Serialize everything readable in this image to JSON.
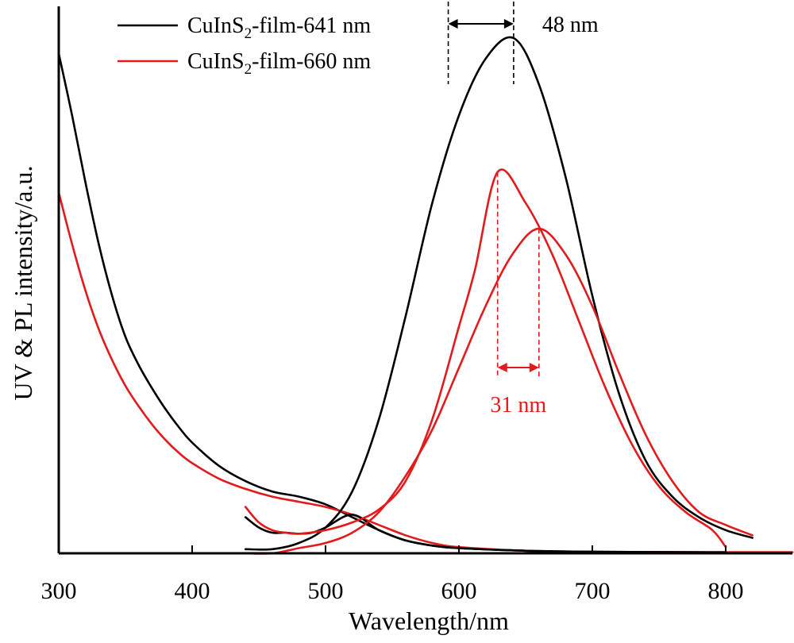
{
  "chart_data": {
    "type": "line",
    "xlabel": "Wavelength/nm",
    "ylabel": "UV & PL intensity/a.u.",
    "xlim": [
      300,
      850
    ],
    "ylim": [
      0,
      100
    ],
    "xticks": [
      300,
      400,
      500,
      600,
      700,
      800
    ],
    "yticks_shown": false,
    "grid": false,
    "legend_position": "top-center",
    "colors": {
      "film641": "#000000",
      "film660": "#e31a1c"
    },
    "legend": [
      {
        "name_prefix": "CuInS",
        "name_sub": "2",
        "name_suffix": "-film-641 nm",
        "color": "#000000"
      },
      {
        "name_prefix": "CuInS",
        "name_sub": "2",
        "name_suffix": "-film-660 nm",
        "color": "#e31a1c"
      }
    ],
    "series": [
      {
        "name": "CuInS2-film-641 nm",
        "role": "UV absorption",
        "color": "#000000",
        "points": [
          [
            300,
            97
          ],
          [
            310,
            85
          ],
          [
            320,
            72
          ],
          [
            330,
            60
          ],
          [
            340,
            50
          ],
          [
            350,
            42
          ],
          [
            360,
            36.5
          ],
          [
            370,
            32
          ],
          [
            380,
            28
          ],
          [
            390,
            24.5
          ],
          [
            400,
            21.5
          ],
          [
            420,
            17
          ],
          [
            440,
            14
          ],
          [
            460,
            12
          ],
          [
            480,
            11
          ],
          [
            500,
            9.5
          ],
          [
            520,
            7
          ],
          [
            540,
            4.5
          ],
          [
            560,
            2.5
          ],
          [
            580,
            1.5
          ],
          [
            600,
            1
          ],
          [
            650,
            0.5
          ],
          [
            700,
            0.3
          ],
          [
            800,
            0.2
          ],
          [
            850,
            0.2
          ]
        ]
      },
      {
        "name": "CuInS2-film-660 nm",
        "role": "UV absorption",
        "color": "#e31a1c",
        "points": [
          [
            300,
            70
          ],
          [
            310,
            60
          ],
          [
            320,
            51
          ],
          [
            330,
            43.5
          ],
          [
            340,
            37.5
          ],
          [
            350,
            32.5
          ],
          [
            360,
            28.5
          ],
          [
            370,
            25
          ],
          [
            380,
            22
          ],
          [
            390,
            19.5
          ],
          [
            400,
            17.5
          ],
          [
            420,
            14.5
          ],
          [
            440,
            12.5
          ],
          [
            460,
            11
          ],
          [
            480,
            10
          ],
          [
            500,
            9
          ],
          [
            520,
            7.5
          ],
          [
            540,
            5.5
          ],
          [
            560,
            3.5
          ],
          [
            580,
            2
          ],
          [
            600,
            1.2
          ],
          [
            650,
            0.5
          ],
          [
            700,
            0.3
          ],
          [
            800,
            0.2
          ],
          [
            850,
            0.2
          ]
        ]
      },
      {
        "name": "CuInS2-film-641 nm",
        "role": "PL emission",
        "color": "#000000",
        "points": [
          [
            440,
            0.8
          ],
          [
            460,
            0.8
          ],
          [
            480,
            2
          ],
          [
            500,
            5
          ],
          [
            520,
            12
          ],
          [
            540,
            26
          ],
          [
            560,
            46
          ],
          [
            580,
            68
          ],
          [
            600,
            85
          ],
          [
            620,
            96
          ],
          [
            641,
            100
          ],
          [
            660,
            91
          ],
          [
            680,
            73
          ],
          [
            700,
            50
          ],
          [
            720,
            31
          ],
          [
            740,
            18
          ],
          [
            760,
            11
          ],
          [
            780,
            7
          ],
          [
            800,
            4.5
          ],
          [
            820,
            3
          ]
        ]
      },
      {
        "name": "CuInS2-film-641 nm",
        "role": "UV absorption (from 440 nm)",
        "color": "#000000",
        "points": [
          [
            440,
            7
          ],
          [
            450,
            5
          ],
          [
            460,
            4
          ],
          [
            470,
            4
          ],
          [
            480,
            3.8
          ],
          [
            490,
            4
          ],
          [
            500,
            5
          ],
          [
            520,
            7.5
          ],
          [
            540,
            4.5
          ],
          [
            560,
            2.5
          ],
          [
            580,
            1.5
          ],
          [
            600,
            1
          ],
          [
            650,
            0.5
          ],
          [
            700,
            0.3
          ],
          [
            800,
            0.2
          ]
        ]
      },
      {
        "name": "CuInS2-film-660 nm",
        "role": "PL emission",
        "color": "#e31a1c",
        "points": [
          [
            440,
            0
          ],
          [
            460,
            0
          ],
          [
            480,
            1
          ],
          [
            500,
            2
          ],
          [
            520,
            4
          ],
          [
            540,
            8
          ],
          [
            560,
            15
          ],
          [
            580,
            24
          ],
          [
            600,
            36
          ],
          [
            620,
            48
          ],
          [
            640,
            58
          ],
          [
            660,
            63
          ],
          [
            680,
            58
          ],
          [
            700,
            48
          ],
          [
            720,
            35
          ],
          [
            740,
            23
          ],
          [
            760,
            14
          ],
          [
            780,
            8
          ],
          [
            800,
            5.5
          ],
          [
            820,
            3.5
          ]
        ]
      },
      {
        "name": "CuInS2-film-660 nm",
        "role": "UV absorption (from 440 nm)",
        "color": "#e31a1c",
        "points": [
          [
            440,
            9
          ],
          [
            450,
            6
          ],
          [
            460,
            4.5
          ],
          [
            470,
            4
          ],
          [
            480,
            3.8
          ],
          [
            500,
            4.5
          ],
          [
            520,
            6
          ],
          [
            540,
            8.5
          ],
          [
            560,
            14
          ],
          [
            580,
            26
          ],
          [
            600,
            44
          ],
          [
            612,
            55
          ],
          [
            629,
            74
          ],
          [
            650,
            68
          ],
          [
            670,
            58
          ],
          [
            690,
            45
          ],
          [
            710,
            32
          ],
          [
            730,
            21
          ],
          [
            750,
            13
          ],
          [
            770,
            8
          ],
          [
            790,
            4.5
          ],
          [
            800,
            1.2
          ]
        ]
      }
    ],
    "annotations": [
      {
        "label": "48 nm",
        "from": 592,
        "to": 641,
        "color": "#000000"
      },
      {
        "label": "31 nm",
        "from": 629,
        "to": 660,
        "color": "#e31a1c"
      }
    ]
  }
}
